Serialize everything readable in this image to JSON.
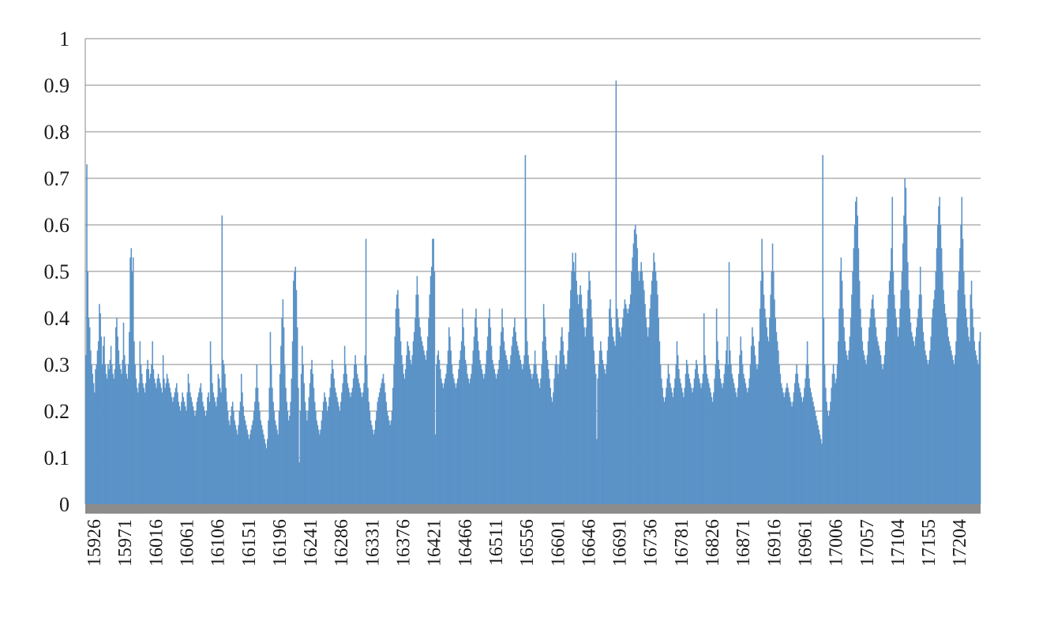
{
  "chart_data": {
    "type": "bar",
    "title": "",
    "xlabel": "",
    "ylabel": "",
    "ylim": [
      0,
      1
    ],
    "y_ticks": [
      "0",
      "0.1",
      "0.2",
      "0.3",
      "0.4",
      "0.5",
      "0.6",
      "0.7",
      "0.8",
      "0.9",
      "1"
    ],
    "x_tick_labels": [
      "15926",
      "15971",
      "16016",
      "16061",
      "16106",
      "16151",
      "16196",
      "16241",
      "16286",
      "16331",
      "16376",
      "16421",
      "16466",
      "16511",
      "16556",
      "16601",
      "16646",
      "16691",
      "16736",
      "16781",
      "16826",
      "16871",
      "16916",
      "16961",
      "17006",
      "17057",
      "17104",
      "17155",
      "17204"
    ],
    "grid": true,
    "legend": "none",
    "series_color": "#5b93c7",
    "baseline_color": "#8c8c8c",
    "series": [
      {
        "values": [
          0.32,
          0.73,
          0.5,
          0.4,
          0.38,
          0.33,
          0.3,
          0.28,
          0.26,
          0.24,
          0.29,
          0.3,
          0.33,
          0.35,
          0.43,
          0.41,
          0.36,
          0.3,
          0.34,
          0.36,
          0.3,
          0.28,
          0.27,
          0.3,
          0.29,
          0.31,
          0.34,
          0.3,
          0.28,
          0.27,
          0.29,
          0.38,
          0.4,
          0.36,
          0.33,
          0.3,
          0.29,
          0.28,
          0.31,
          0.39,
          0.32,
          0.3,
          0.28,
          0.27,
          0.3,
          0.37,
          0.53,
          0.55,
          0.5,
          0.53,
          0.35,
          0.3,
          0.27,
          0.25,
          0.24,
          0.26,
          0.35,
          0.3,
          0.28,
          0.26,
          0.25,
          0.24,
          0.26,
          0.29,
          0.31,
          0.29,
          0.27,
          0.28,
          0.3,
          0.35,
          0.29,
          0.27,
          0.26,
          0.25,
          0.27,
          0.28,
          0.27,
          0.26,
          0.25,
          0.24,
          0.32,
          0.27,
          0.25,
          0.26,
          0.28,
          0.27,
          0.26,
          0.25,
          0.24,
          0.23,
          0.22,
          0.23,
          0.24,
          0.25,
          0.26,
          0.24,
          0.22,
          0.21,
          0.2,
          0.22,
          0.24,
          0.23,
          0.22,
          0.21,
          0.2,
          0.24,
          0.28,
          0.26,
          0.24,
          0.23,
          0.22,
          0.21,
          0.2,
          0.19,
          0.2,
          0.22,
          0.23,
          0.24,
          0.25,
          0.26,
          0.24,
          0.22,
          0.21,
          0.2,
          0.19,
          0.2,
          0.23,
          0.24,
          0.22,
          0.35,
          0.3,
          0.26,
          0.24,
          0.23,
          0.22,
          0.21,
          0.23,
          0.28,
          0.27,
          0.25,
          0.24,
          0.62,
          0.31,
          0.3,
          0.28,
          0.25,
          0.22,
          0.2,
          0.18,
          0.17,
          0.19,
          0.21,
          0.22,
          0.2,
          0.18,
          0.17,
          0.16,
          0.15,
          0.17,
          0.2,
          0.22,
          0.28,
          0.24,
          0.21,
          0.19,
          0.18,
          0.17,
          0.16,
          0.15,
          0.14,
          0.15,
          0.16,
          0.17,
          0.18,
          0.2,
          0.22,
          0.25,
          0.3,
          0.25,
          0.22,
          0.2,
          0.18,
          0.17,
          0.16,
          0.15,
          0.14,
          0.13,
          0.12,
          0.14,
          0.18,
          0.25,
          0.37,
          0.3,
          0.25,
          0.22,
          0.2,
          0.18,
          0.17,
          0.16,
          0.15,
          0.2,
          0.28,
          0.34,
          0.4,
          0.44,
          0.38,
          0.3,
          0.25,
          0.22,
          0.2,
          0.18,
          0.19,
          0.22,
          0.27,
          0.35,
          0.48,
          0.5,
          0.51,
          0.46,
          0.38,
          0.25,
          0.09,
          0.2,
          0.28,
          0.34,
          0.3,
          0.26,
          0.22,
          0.2,
          0.18,
          0.2,
          0.23,
          0.26,
          0.29,
          0.31,
          0.28,
          0.25,
          0.22,
          0.2,
          0.18,
          0.17,
          0.16,
          0.15,
          0.16,
          0.18,
          0.2,
          0.22,
          0.24,
          0.23,
          0.22,
          0.2,
          0.21,
          0.23,
          0.25,
          0.28,
          0.31,
          0.29,
          0.27,
          0.25,
          0.24,
          0.23,
          0.22,
          0.21,
          0.2,
          0.22,
          0.24,
          0.26,
          0.28,
          0.34,
          0.3,
          0.28,
          0.26,
          0.25,
          0.24,
          0.23,
          0.24,
          0.25,
          0.27,
          0.3,
          0.32,
          0.3,
          0.28,
          0.27,
          0.26,
          0.25,
          0.24,
          0.23,
          0.24,
          0.26,
          0.32,
          0.57,
          0.3,
          0.25,
          0.22,
          0.2,
          0.18,
          0.17,
          0.16,
          0.15,
          0.16,
          0.18,
          0.2,
          0.22,
          0.23,
          0.24,
          0.25,
          0.26,
          0.27,
          0.28,
          0.26,
          0.24,
          0.22,
          0.2,
          0.19,
          0.18,
          0.17,
          0.18,
          0.2,
          0.25,
          0.3,
          0.36,
          0.42,
          0.45,
          0.46,
          0.42,
          0.38,
          0.35,
          0.32,
          0.3,
          0.28,
          0.27,
          0.29,
          0.32,
          0.35,
          0.34,
          0.33,
          0.31,
          0.3,
          0.32,
          0.35,
          0.37,
          0.4,
          0.45,
          0.49,
          0.45,
          0.4,
          0.38,
          0.36,
          0.35,
          0.34,
          0.33,
          0.32,
          0.31,
          0.33,
          0.36,
          0.4,
          0.45,
          0.49,
          0.51,
          0.57,
          0.57,
          0.5,
          0.15,
          0.3,
          0.32,
          0.33,
          0.31,
          0.29,
          0.27,
          0.26,
          0.25,
          0.26,
          0.27,
          0.28,
          0.3,
          0.33,
          0.38,
          0.36,
          0.33,
          0.3,
          0.28,
          0.27,
          0.26,
          0.25,
          0.26,
          0.27,
          0.29,
          0.31,
          0.33,
          0.35,
          0.42,
          0.38,
          0.34,
          0.31,
          0.3,
          0.28,
          0.27,
          0.26,
          0.27,
          0.28,
          0.3,
          0.33,
          0.36,
          0.4,
          0.42,
          0.38,
          0.35,
          0.33,
          0.31,
          0.3,
          0.29,
          0.28,
          0.27,
          0.28,
          0.3,
          0.33,
          0.36,
          0.4,
          0.42,
          0.38,
          0.34,
          0.31,
          0.3,
          0.29,
          0.28,
          0.27,
          0.28,
          0.29,
          0.31,
          0.34,
          0.37,
          0.42,
          0.38,
          0.35,
          0.33,
          0.32,
          0.31,
          0.3,
          0.29,
          0.3,
          0.32,
          0.34,
          0.36,
          0.38,
          0.4,
          0.37,
          0.35,
          0.34,
          0.33,
          0.32,
          0.31,
          0.3,
          0.29,
          0.3,
          0.32,
          0.75,
          0.4,
          0.35,
          0.32,
          0.3,
          0.29,
          0.28,
          0.27,
          0.28,
          0.3,
          0.33,
          0.3,
          0.28,
          0.27,
          0.26,
          0.25,
          0.27,
          0.3,
          0.35,
          0.43,
          0.4,
          0.36,
          0.33,
          0.31,
          0.29,
          0.27,
          0.25,
          0.23,
          0.22,
          0.24,
          0.27,
          0.3,
          0.32,
          0.3,
          0.28,
          0.3,
          0.33,
          0.36,
          0.38,
          0.35,
          0.32,
          0.3,
          0.29,
          0.3,
          0.33,
          0.37,
          0.42,
          0.46,
          0.5,
          0.54,
          0.52,
          0.5,
          0.54,
          0.48,
          0.45,
          0.43,
          0.45,
          0.47,
          0.45,
          0.42,
          0.4,
          0.38,
          0.36,
          0.38,
          0.42,
          0.46,
          0.5,
          0.48,
          0.44,
          0.4,
          0.36,
          0.33,
          0.3,
          0.28,
          0.14,
          0.27,
          0.3,
          0.33,
          0.35,
          0.33,
          0.31,
          0.3,
          0.29,
          0.28,
          0.3,
          0.33,
          0.36,
          0.42,
          0.44,
          0.4,
          0.38,
          0.36,
          0.35,
          0.34,
          0.91,
          0.42,
          0.4,
          0.38,
          0.37,
          0.36,
          0.38,
          0.4,
          0.42,
          0.44,
          0.43,
          0.42,
          0.41,
          0.42,
          0.43,
          0.45,
          0.5,
          0.53,
          0.56,
          0.59,
          0.6,
          0.58,
          0.55,
          0.5,
          0.48,
          0.5,
          0.52,
          0.5,
          0.48,
          0.46,
          0.43,
          0.4,
          0.38,
          0.36,
          0.38,
          0.42,
          0.45,
          0.48,
          0.5,
          0.54,
          0.52,
          0.5,
          0.48,
          0.45,
          0.4,
          0.35,
          0.3,
          0.27,
          0.25,
          0.23,
          0.22,
          0.23,
          0.25,
          0.27,
          0.3,
          0.28,
          0.26,
          0.25,
          0.24,
          0.23,
          0.25,
          0.27,
          0.3,
          0.35,
          0.32,
          0.29,
          0.27,
          0.26,
          0.25,
          0.24,
          0.23,
          0.25,
          0.28,
          0.31,
          0.3,
          0.28,
          0.27,
          0.26,
          0.25,
          0.24,
          0.25,
          0.27,
          0.29,
          0.31,
          0.3,
          0.28,
          0.27,
          0.26,
          0.25,
          0.26,
          0.28,
          0.41,
          0.32,
          0.3,
          0.28,
          0.27,
          0.26,
          0.25,
          0.24,
          0.23,
          0.22,
          0.24,
          0.27,
          0.3,
          0.42,
          0.35,
          0.31,
          0.29,
          0.27,
          0.26,
          0.25,
          0.26,
          0.28,
          0.3,
          0.33,
          0.36,
          0.3,
          0.52,
          0.33,
          0.3,
          0.28,
          0.27,
          0.26,
          0.25,
          0.24,
          0.23,
          0.25,
          0.28,
          0.32,
          0.36,
          0.33,
          0.3,
          0.28,
          0.27,
          0.26,
          0.25,
          0.24,
          0.25,
          0.27,
          0.3,
          0.34,
          0.38,
          0.36,
          0.34,
          0.32,
          0.3,
          0.29,
          0.3,
          0.35,
          0.42,
          0.48,
          0.57,
          0.5,
          0.45,
          0.42,
          0.4,
          0.38,
          0.36,
          0.35,
          0.4,
          0.45,
          0.5,
          0.56,
          0.5,
          0.44,
          0.4,
          0.37,
          0.35,
          0.33,
          0.3,
          0.28,
          0.26,
          0.25,
          0.24,
          0.23,
          0.24,
          0.25,
          0.26,
          0.25,
          0.24,
          0.23,
          0.22,
          0.21,
          0.22,
          0.24,
          0.26,
          0.28,
          0.3,
          0.28,
          0.26,
          0.25,
          0.24,
          0.23,
          0.22,
          0.23,
          0.25,
          0.27,
          0.3,
          0.35,
          0.3,
          0.27,
          0.25,
          0.24,
          0.23,
          0.22,
          0.21,
          0.2,
          0.19,
          0.18,
          0.17,
          0.16,
          0.15,
          0.14,
          0.13,
          0.75,
          0.4,
          0.3,
          0.25,
          0.22,
          0.2,
          0.19,
          0.2,
          0.22,
          0.25,
          0.28,
          0.3,
          0.28,
          0.26,
          0.27,
          0.3,
          0.35,
          0.42,
          0.5,
          0.53,
          0.48,
          0.42,
          0.38,
          0.35,
          0.33,
          0.32,
          0.31,
          0.33,
          0.36,
          0.4,
          0.45,
          0.5,
          0.55,
          0.6,
          0.65,
          0.66,
          0.62,
          0.55,
          0.48,
          0.42,
          0.38,
          0.35,
          0.33,
          0.32,
          0.31,
          0.3,
          0.32,
          0.35,
          0.38,
          0.4,
          0.42,
          0.44,
          0.45,
          0.42,
          0.4,
          0.38,
          0.36,
          0.35,
          0.34,
          0.33,
          0.32,
          0.3,
          0.29,
          0.3,
          0.32,
          0.35,
          0.38,
          0.42,
          0.45,
          0.48,
          0.5,
          0.55,
          0.66,
          0.5,
          0.45,
          0.42,
          0.4,
          0.38,
          0.36,
          0.38,
          0.42,
          0.46,
          0.5,
          0.56,
          0.62,
          0.7,
          0.68,
          0.6,
          0.52,
          0.46,
          0.42,
          0.39,
          0.37,
          0.36,
          0.35,
          0.34,
          0.36,
          0.38,
          0.4,
          0.42,
          0.45,
          0.51,
          0.45,
          0.4,
          0.37,
          0.35,
          0.33,
          0.32,
          0.31,
          0.3,
          0.31,
          0.33,
          0.36,
          0.4,
          0.42,
          0.44,
          0.46,
          0.5,
          0.55,
          0.6,
          0.64,
          0.66,
          0.6,
          0.55,
          0.5,
          0.46,
          0.43,
          0.41,
          0.4,
          0.38,
          0.36,
          0.35,
          0.34,
          0.33,
          0.32,
          0.31,
          0.3,
          0.32,
          0.35,
          0.4,
          0.46,
          0.5,
          0.55,
          0.6,
          0.66,
          0.57,
          0.5,
          0.45,
          0.42,
          0.4,
          0.38,
          0.36,
          0.35,
          0.45,
          0.48,
          0.42,
          0.38,
          0.35,
          0.33,
          0.32,
          0.31,
          0.3,
          0.35,
          0.37
        ]
      }
    ]
  }
}
